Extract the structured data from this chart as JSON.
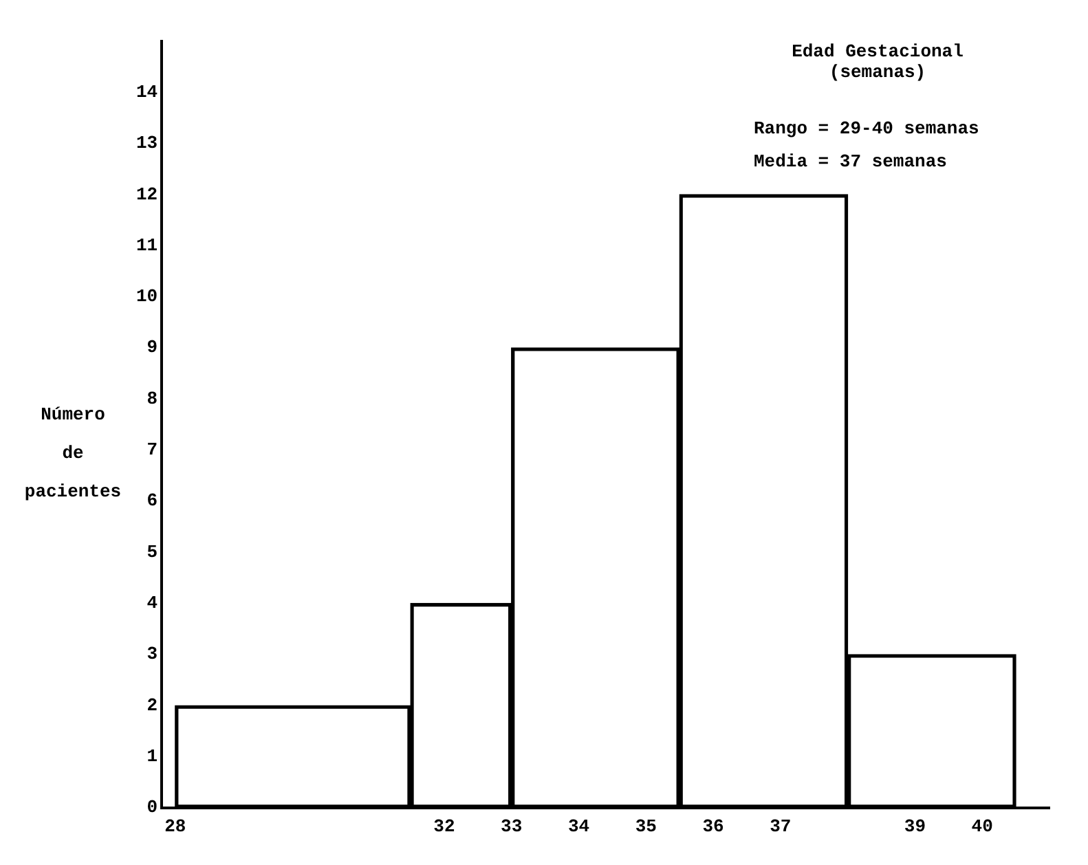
{
  "chart_data": {
    "type": "histogram",
    "title": "Edad Gestacional (semanas)",
    "ylabel": "Número de pacientes",
    "bins": [
      28,
      31.5,
      33,
      35.5,
      38,
      40.5
    ],
    "values": [
      2,
      4,
      9,
      12,
      3
    ],
    "color": "#000000",
    "xlim": [
      27.8,
      41
    ],
    "xticks": [
      28,
      32,
      33,
      34,
      35,
      36,
      37,
      39,
      40
    ],
    "ylim": [
      0,
      15
    ],
    "yticks": [
      0,
      1,
      2,
      3,
      4,
      5,
      6,
      7,
      8,
      9,
      10,
      11,
      12,
      13,
      14
    ],
    "grid": false,
    "annotations": [
      "Rango = 29-40 semanas",
      "Media = 37 semanas"
    ]
  }
}
